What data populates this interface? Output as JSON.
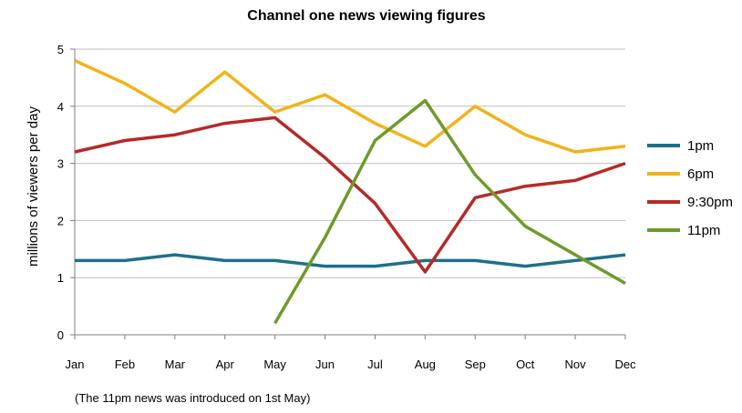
{
  "chart_data": {
    "type": "line",
    "title": "Channel one news viewing figures",
    "ylabel": "millions of viewers per day",
    "xlabel": "",
    "categories": [
      "Jan",
      "Feb",
      "Mar",
      "Apr",
      "May",
      "Jun",
      "Jul",
      "Aug",
      "Sep",
      "Oct",
      "Nov",
      "Dec"
    ],
    "ylim": [
      0,
      5
    ],
    "yticks": [
      0,
      1,
      2,
      3,
      4,
      5
    ],
    "grid": "horizontal",
    "legend_position": "right",
    "series": [
      {
        "name": "1pm",
        "color": "#1f6f8b",
        "values": [
          1.3,
          1.3,
          1.4,
          1.3,
          1.3,
          1.2,
          1.2,
          1.3,
          1.3,
          1.2,
          1.3,
          1.4
        ]
      },
      {
        "name": "6pm",
        "color": "#f2b31a",
        "values": [
          4.8,
          4.4,
          3.9,
          4.6,
          3.9,
          4.2,
          3.7,
          3.3,
          4.0,
          3.5,
          3.2,
          3.3
        ]
      },
      {
        "name": "9:30pm",
        "color": "#b52a27",
        "values": [
          3.2,
          3.4,
          3.5,
          3.7,
          3.8,
          3.1,
          2.3,
          1.1,
          2.4,
          2.6,
          2.7,
          3.0
        ]
      },
      {
        "name": "11pm",
        "color": "#6e9a2c",
        "values": [
          null,
          null,
          null,
          null,
          0.2,
          1.7,
          3.4,
          4.1,
          2.8,
          1.9,
          1.4,
          0.9
        ]
      }
    ],
    "footnote": "(The 11pm news was introduced on 1st May)"
  }
}
